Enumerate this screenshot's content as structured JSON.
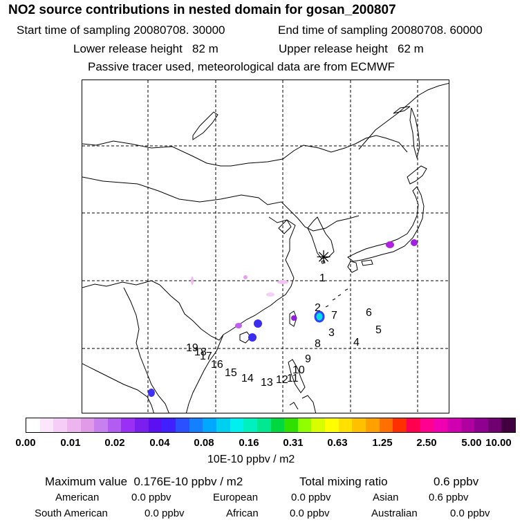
{
  "header": {
    "title": "NO2 source contributions in nested domain for gosan_200807",
    "start_time": "Start time of sampling 20080708. 30000",
    "end_time": "End time of sampling 20080708. 60000",
    "lower_release": "Lower release height   82 m",
    "upper_release": "Upper release height   62 m",
    "note": "Passive tracer used, meteorological data are from ECMWF"
  },
  "map": {
    "receptor_symbol": "✳",
    "trajectory_labels": [
      "1",
      "2",
      "7",
      "3",
      "6",
      "5",
      "4",
      "8",
      "9",
      "10",
      "11",
      "12",
      "13",
      "14",
      "15",
      "16",
      "17",
      "18",
      "19"
    ]
  },
  "colorbar": {
    "colors": [
      "#ffffff",
      "#fbe6fb",
      "#f6cdf6",
      "#eeb4ee",
      "#e09ae8",
      "#c980ef",
      "#b35cf2",
      "#9a2ff5",
      "#7a1ff0",
      "#5a10f0",
      "#4020ff",
      "#2a50ff",
      "#1580ff",
      "#00a8ff",
      "#00d0f0",
      "#00f0f0",
      "#00f0c0",
      "#00e890",
      "#00d840",
      "#30e000",
      "#90ff00",
      "#d8ff00",
      "#ffff00",
      "#ffe000",
      "#ffc000",
      "#ffa000",
      "#ff7000",
      "#ff3000",
      "#ff0050",
      "#ff0090",
      "#f000b0",
      "#d000b0",
      "#b000a0",
      "#900090",
      "#700070",
      "#400040"
    ],
    "tick_labels": [
      "0.00",
      "0.01",
      "0.02",
      "0.04",
      "0.08",
      "0.16",
      "0.31",
      "0.63",
      "1.25",
      "2.50",
      "5.00",
      "10.00"
    ],
    "units": "10E-10 ppbv / m2"
  },
  "stats": {
    "max_value": "Maximum value  0.176E-10 ppbv / m2",
    "total_mixing": "Total mixing ratio",
    "total_mixing_value": "0.6 ppbv",
    "american_label": "American",
    "american_value": "0.0 ppbv",
    "european_label": "European",
    "european_value": "0.0 ppbv",
    "asian_label": "Asian",
    "asian_value": "0.6 ppbv",
    "south_american_label": "South American",
    "south_american_value": "0.0 ppbv",
    "african_label": "African",
    "african_value": "0.0 ppbv",
    "australian_label": "Australian",
    "australian_value": "0.0 ppbv"
  }
}
